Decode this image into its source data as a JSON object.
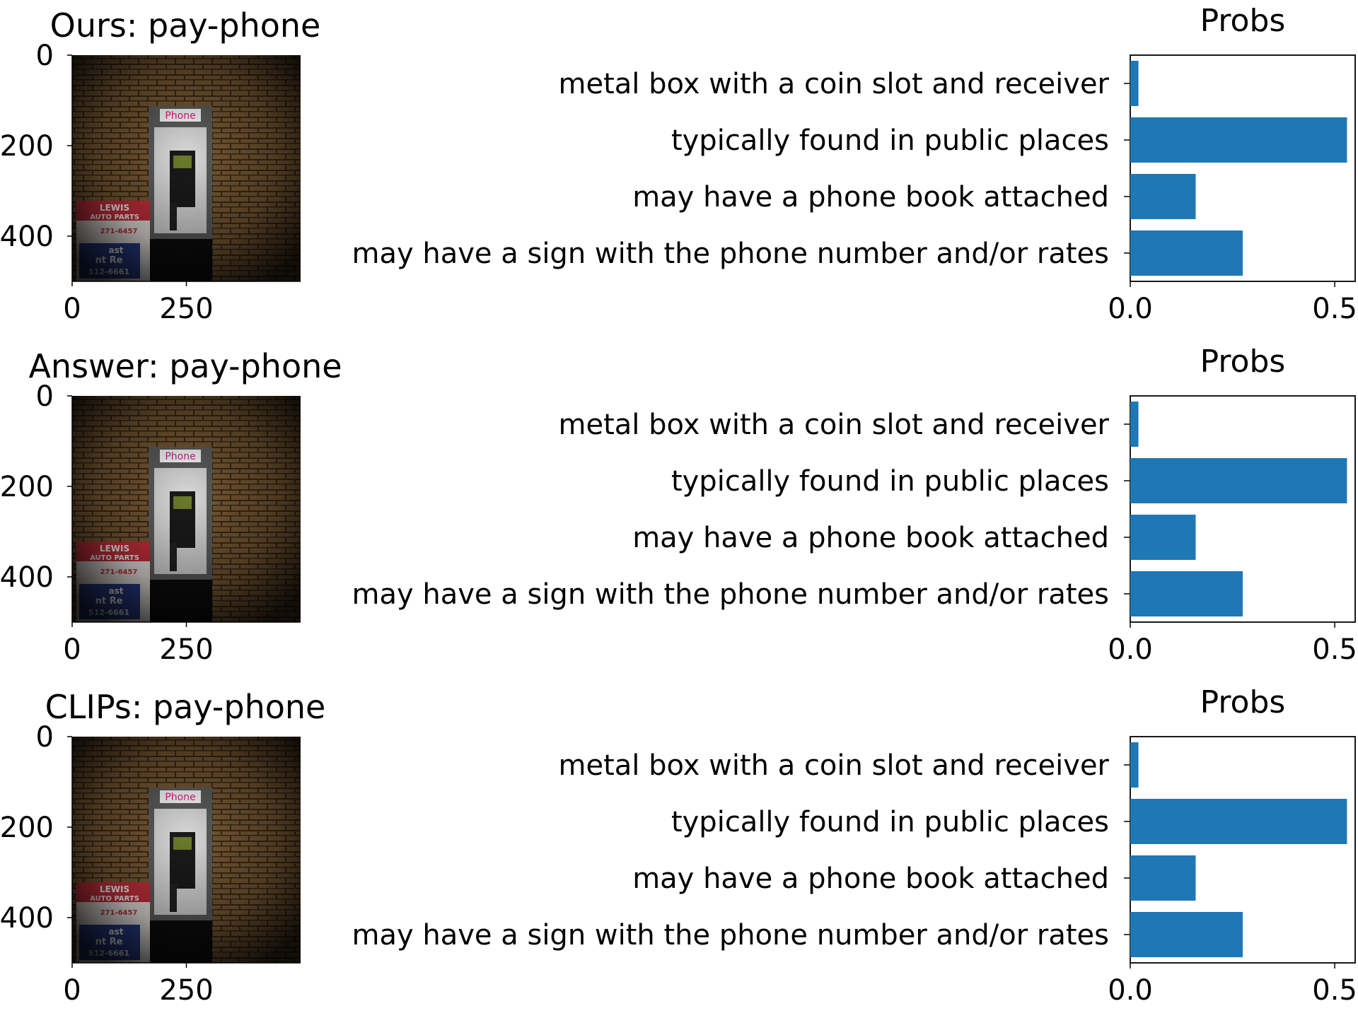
{
  "panels": [
    {
      "title": "Ours: pay-phone",
      "image": {
        "sign_text": "Phone",
        "poster_lines": [
          "LEWIS",
          "AUTO PARTS",
          "271-6457",
          "ast",
          "nt Re",
          "512-6661"
        ],
        "xticks": [
          "0",
          "250"
        ],
        "yticks": [
          "0",
          "200",
          "400"
        ]
      }
    },
    {
      "title": "Answer: pay-phone",
      "image": {
        "sign_text": "Phone",
        "poster_lines": [
          "LEWIS",
          "AUTO PARTS",
          "271-6457",
          "ast",
          "nt Re",
          "512-6661"
        ],
        "xticks": [
          "0",
          "250"
        ],
        "yticks": [
          "0",
          "200",
          "400"
        ]
      }
    },
    {
      "title": "CLIPs: pay-phone",
      "image": {
        "sign_text": "Phone",
        "poster_lines": [
          "LEWIS",
          "AUTO PARTS",
          "271-6457",
          "ast",
          "nt Re",
          "512-6661"
        ],
        "xticks": [
          "0",
          "250"
        ],
        "yticks": [
          "0",
          "200",
          "400"
        ]
      }
    }
  ],
  "colors": {
    "bar": "#1f77b4",
    "axis": "#000000"
  },
  "chart_data": [
    {
      "type": "bar",
      "orientation": "horizontal",
      "title": "Probs",
      "categories": [
        "metal box with a coin slot and receiver",
        "typically found in public places",
        "may have a phone book attached",
        "may have a sign with the phone number and/or rates"
      ],
      "values": [
        0.02,
        0.53,
        0.16,
        0.275
      ],
      "xticks": [
        "0.0",
        "0.5"
      ],
      "xlim": [
        0,
        0.55
      ],
      "grid": false
    },
    {
      "type": "bar",
      "orientation": "horizontal",
      "title": "Probs",
      "categories": [
        "metal box with a coin slot and receiver",
        "typically found in public places",
        "may have a phone book attached",
        "may have a sign with the phone number and/or rates"
      ],
      "values": [
        0.02,
        0.53,
        0.16,
        0.275
      ],
      "xticks": [
        "0.0",
        "0.5"
      ],
      "xlim": [
        0,
        0.55
      ],
      "grid": false
    },
    {
      "type": "bar",
      "orientation": "horizontal",
      "title": "Probs",
      "categories": [
        "metal box with a coin slot and receiver",
        "typically found in public places",
        "may have a phone book attached",
        "may have a sign with the phone number and/or rates"
      ],
      "values": [
        0.02,
        0.53,
        0.16,
        0.275
      ],
      "xticks": [
        "0.0",
        "0.5"
      ],
      "xlim": [
        0,
        0.55
      ],
      "grid": false
    }
  ]
}
